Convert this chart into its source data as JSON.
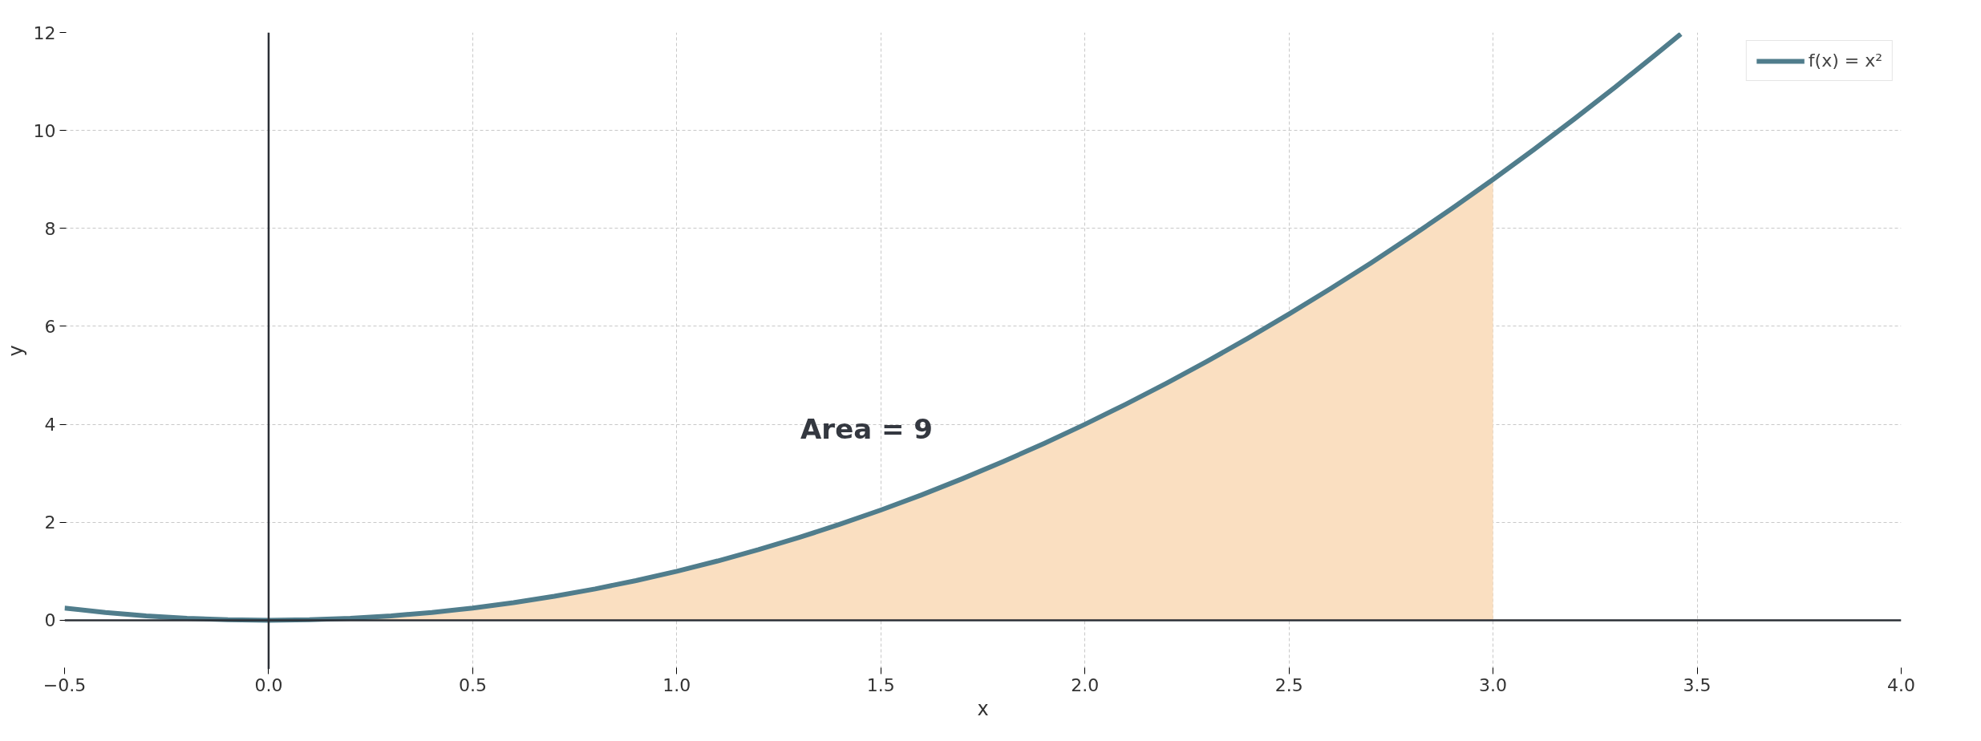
{
  "chart_data": {
    "type": "line",
    "xlabel": "x",
    "ylabel": "y",
    "xlim": [
      -0.5,
      4.0
    ],
    "ylim": [
      -1,
      12
    ],
    "xticks": [
      {
        "value": -0.5,
        "label": "−0.5"
      },
      {
        "value": 0,
        "label": "0.0"
      },
      0.5,
      {
        "value": 1,
        "label": "1.0"
      },
      1.5,
      {
        "value": 2,
        "label": "2.0"
      },
      2.5,
      {
        "value": 3,
        "label": "3.0"
      },
      3.5,
      {
        "value": 4,
        "label": "4.0"
      }
    ],
    "yticks": [
      0,
      2,
      4,
      6,
      8,
      10,
      12
    ],
    "grid": true,
    "legend": "top right",
    "line_style": "solid",
    "annotations": [
      "Area = 9"
    ],
    "series": [
      {
        "type": "area",
        "color": "#fadfc1",
        "x": [
          0,
          0.25,
          0.5,
          0.75,
          1.0,
          1.25,
          1.5,
          1.75,
          2.0,
          2.25,
          2.5,
          2.75,
          3.0
        ],
        "values": [
          0,
          0.1,
          0.25,
          0.6,
          1.0,
          1.6,
          2.25,
          3.1,
          4.0,
          5.1,
          6.25,
          7.6,
          9.0
        ]
      },
      {
        "name": "f(x) = x²",
        "color": "#507d8c",
        "x": [
          -0.5,
          -0.4,
          -0.3,
          -0.2,
          -0.1,
          0,
          0.1,
          0.2,
          0.3,
          0.4,
          0.5,
          0.6,
          0.7,
          0.8,
          0.9,
          1.0,
          1.1,
          1.2,
          1.3,
          1.4,
          1.5,
          1.6,
          1.7,
          1.8,
          1.9,
          2.0,
          2.1,
          2.2,
          2.3,
          2.4,
          2.5,
          2.6,
          2.7,
          2.8,
          2.9,
          3.0,
          3.1,
          3.2,
          3.3,
          3.4,
          3.46
        ],
        "values": [
          0.25,
          0.16,
          0.09,
          0.04,
          0.01,
          0,
          0.01,
          0.04,
          0.09,
          0.16,
          0.25,
          0.36,
          0.49,
          0.64,
          0.81,
          1.0,
          1.21,
          1.44,
          1.69,
          1.96,
          2.25,
          2.56,
          2.89,
          3.24,
          3.61,
          4.0,
          4.41,
          4.84,
          5.29,
          5.76,
          6.25,
          6.76,
          7.29,
          7.84,
          8.41,
          9.0,
          9.61,
          10.24,
          10.89,
          11.56,
          11.97
        ]
      }
    ]
  }
}
